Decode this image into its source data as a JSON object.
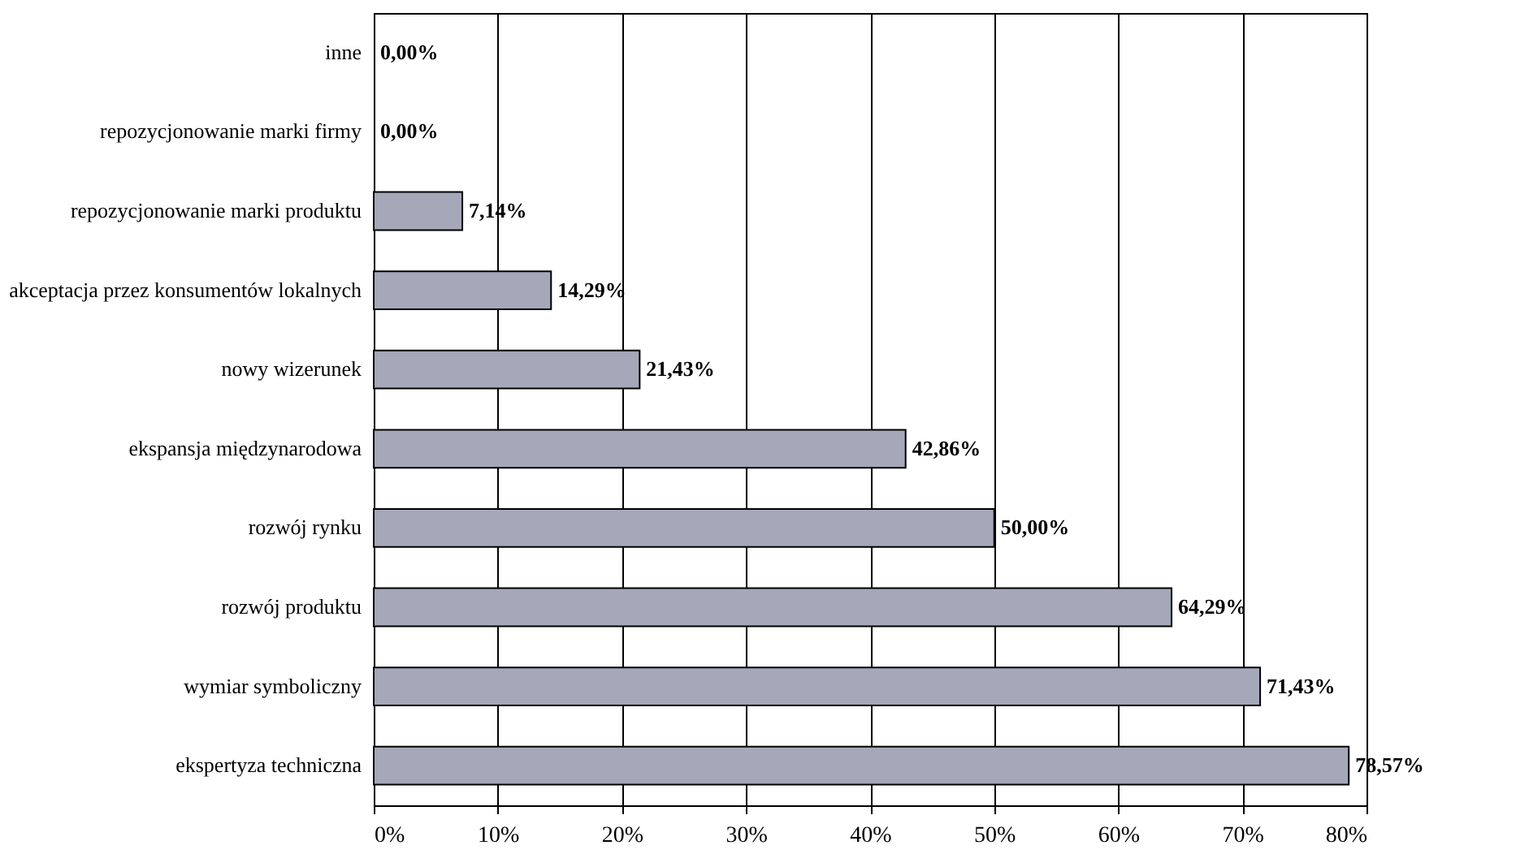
{
  "chart_data": {
    "type": "bar",
    "orientation": "horizontal",
    "categories": [
      "inne",
      "repozycjonowanie marki firmy",
      "repozycjonowanie marki produktu",
      "akceptacja przez konsumentów lokalnych",
      "nowy wizerunek",
      "ekspansja międzynarodowa",
      "rozwój rynku",
      "rozwój produktu",
      "wymiar symboliczny",
      "ekspertyza techniczna"
    ],
    "values": [
      0,
      0,
      7.14,
      14.29,
      21.43,
      42.86,
      50,
      64.29,
      71.43,
      78.57
    ],
    "value_labels": [
      "0,00%",
      "0,00%",
      "7,14%",
      "14,29%",
      "21,43%",
      "42,86%",
      "50,00%",
      "64,29%",
      "71,43%",
      "78,57%"
    ],
    "color": "#a4a8b8",
    "xlim": [
      0,
      80
    ],
    "xticks": [
      {
        "value": 0,
        "label": "0%"
      },
      {
        "value": 10,
        "label": "10%"
      },
      {
        "value": 20,
        "label": "20%"
      },
      {
        "value": 30,
        "label": "30%"
      },
      {
        "value": 40,
        "label": "40%"
      },
      {
        "value": 50,
        "label": "50%"
      },
      {
        "value": 60,
        "label": "60%"
      },
      {
        "value": 70,
        "label": "70%"
      },
      {
        "value": 80,
        "label": "80%"
      }
    ],
    "grid": "x"
  }
}
